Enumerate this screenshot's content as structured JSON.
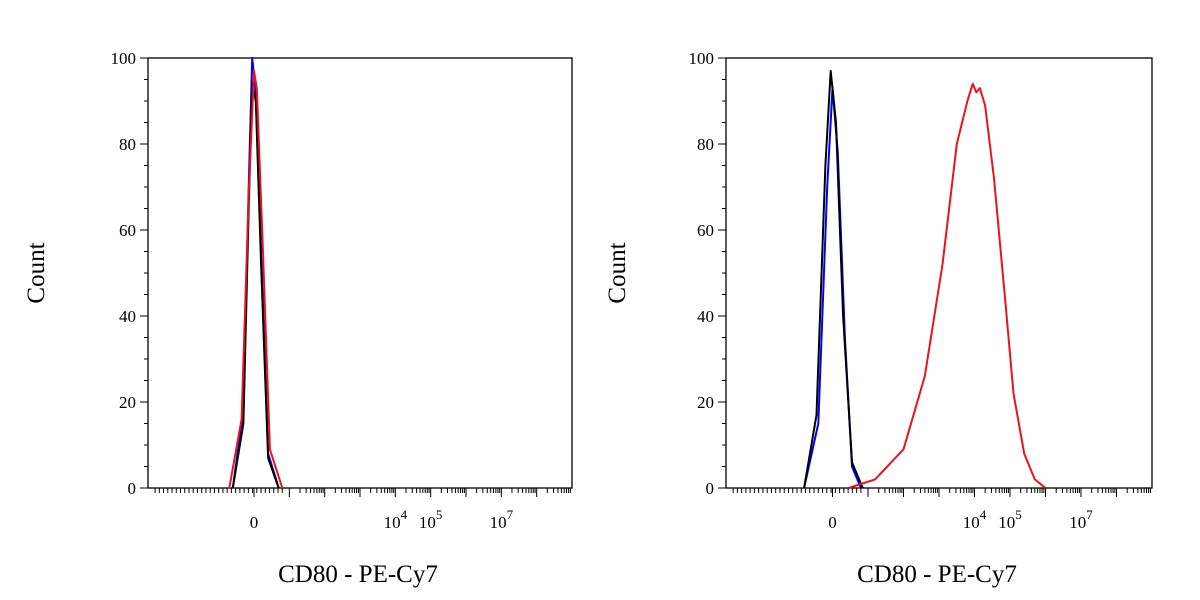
{
  "chart_data": [
    {
      "type": "line",
      "title": "",
      "xlabel": "CD80 - PE-Cy7",
      "ylabel": "Count",
      "ylim": [
        0,
        100
      ],
      "xscale": "biexponential",
      "xlim": [
        -3,
        9
      ],
      "yticks": [
        0,
        20,
        40,
        60,
        80,
        100
      ],
      "xticks": [
        {
          "value": 0,
          "base": "0",
          "exp": ""
        },
        {
          "value": 4,
          "base": "10",
          "exp": "4"
        },
        {
          "value": 5,
          "base": "10",
          "exp": "5"
        },
        {
          "value": 7,
          "base": "10",
          "exp": "7"
        }
      ],
      "grid": false,
      "series": [
        {
          "color": "#0000ff",
          "x": [
            -0.6,
            -0.3,
            -0.15,
            -0.05,
            0.05,
            0.2,
            0.4,
            0.7
          ],
          "y": [
            0,
            18,
            70,
            100,
            92,
            55,
            8,
            0
          ]
        },
        {
          "color": "#000000",
          "x": [
            -0.6,
            -0.3,
            -0.15,
            -0.05,
            0.05,
            0.2,
            0.4,
            0.7
          ],
          "y": [
            0,
            15,
            65,
            94,
            90,
            52,
            7,
            0
          ]
        },
        {
          "color": "#e8141c",
          "x": [
            -0.7,
            -0.35,
            -0.15,
            0.0,
            0.08,
            0.25,
            0.45,
            0.8
          ],
          "y": [
            0,
            16,
            68,
            97,
            93,
            56,
            9,
            0
          ]
        }
      ]
    },
    {
      "type": "line",
      "title": "",
      "xlabel": "CD80 - PE-Cy7",
      "ylabel": "Count",
      "ylim": [
        0,
        100
      ],
      "xscale": "biexponential",
      "xlim": [
        -3,
        9
      ],
      "yticks": [
        0,
        20,
        40,
        60,
        80,
        100
      ],
      "xticks": [
        {
          "value": 0,
          "base": "0",
          "exp": ""
        },
        {
          "value": 4,
          "base": "10",
          "exp": "4"
        },
        {
          "value": 5,
          "base": "10",
          "exp": "5"
        },
        {
          "value": 7,
          "base": "10",
          "exp": "7"
        }
      ],
      "grid": false,
      "series": [
        {
          "color": "#0000ff",
          "x": [
            -0.8,
            -0.4,
            -0.15,
            0.0,
            0.15,
            0.35,
            0.55,
            0.8
          ],
          "y": [
            0,
            15,
            70,
            93,
            78,
            35,
            5,
            0
          ]
        },
        {
          "color": "#000000",
          "x": [
            -0.8,
            -0.45,
            -0.2,
            -0.05,
            0.1,
            0.3,
            0.55,
            0.85
          ],
          "y": [
            0,
            17,
            75,
            97,
            85,
            40,
            6,
            0
          ]
        },
        {
          "color": "#e8141c",
          "x": [
            0.45,
            1.2,
            2.0,
            2.6,
            3.1,
            3.5,
            3.8,
            3.95,
            4.05,
            4.15,
            4.3,
            4.55,
            4.85,
            5.1,
            5.4,
            5.7,
            6.0
          ],
          "y": [
            0,
            2,
            9,
            26,
            52,
            80,
            90,
            94,
            92,
            93,
            89,
            72,
            45,
            22,
            8,
            2,
            0
          ]
        }
      ]
    }
  ]
}
